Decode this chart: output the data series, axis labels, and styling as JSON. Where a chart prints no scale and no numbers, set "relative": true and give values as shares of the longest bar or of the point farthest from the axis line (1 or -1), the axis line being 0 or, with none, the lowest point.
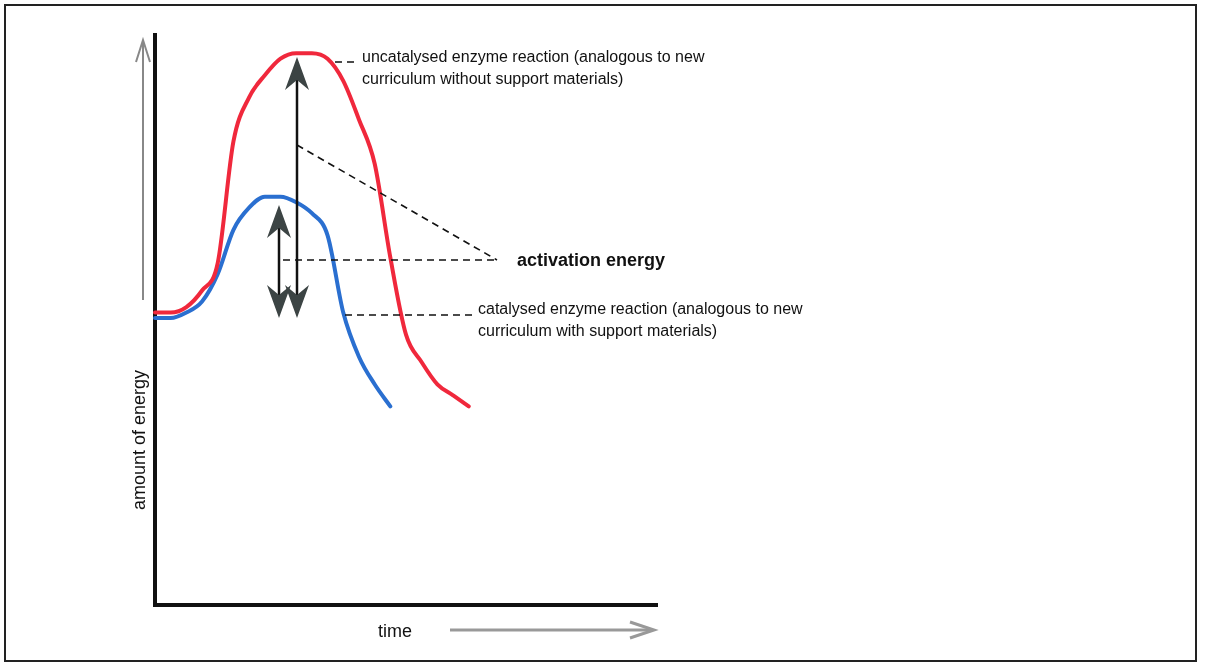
{
  "chart_data": {
    "type": "line",
    "relative": true,
    "xlabel": "time",
    "ylabel": "amount of energy",
    "tick_labels": false,
    "grid": false,
    "legend": false,
    "marker": "none",
    "line_style": "solid",
    "categories": [
      null,
      null,
      null,
      null,
      null,
      null,
      null,
      null,
      null,
      null,
      null,
      null,
      null,
      null,
      null,
      null,
      null,
      null,
      null,
      null,
      null,
      null,
      null,
      null,
      null,
      null,
      null,
      null,
      null,
      null,
      null,
      null,
      null
    ],
    "series": [
      {
        "color": "#f0283c",
        "values": [
          0.53,
          0.53,
          0.54,
          0.57,
          0.62,
          0.84,
          0.92,
          0.96,
          0.99,
          1.0,
          1.0,
          0.99,
          0.95,
          0.88,
          0.8,
          0.63,
          0.49,
          0.44,
          0.4,
          0.38,
          0.36,
          null,
          null,
          null,
          null,
          null,
          null,
          null,
          null,
          null,
          null,
          null,
          null
        ]
      },
      {
        "color": "#2a6fd0",
        "values": [
          0.52,
          0.52,
          0.53,
          0.55,
          0.6,
          0.68,
          0.72,
          0.74,
          0.74,
          0.73,
          0.71,
          0.67,
          0.53,
          0.45,
          0.4,
          0.36,
          null,
          null,
          null,
          null,
          null,
          null,
          null,
          null,
          null,
          null,
          null,
          null,
          null,
          null,
          null,
          null,
          null
        ]
      }
    ],
    "annotations": [
      "uncatalysed enzyme reaction (analogous to new curriculum without support materials)",
      "activation energy",
      "catalysed enzyme reaction (analogous to new curriculum with support materials)"
    ]
  }
}
